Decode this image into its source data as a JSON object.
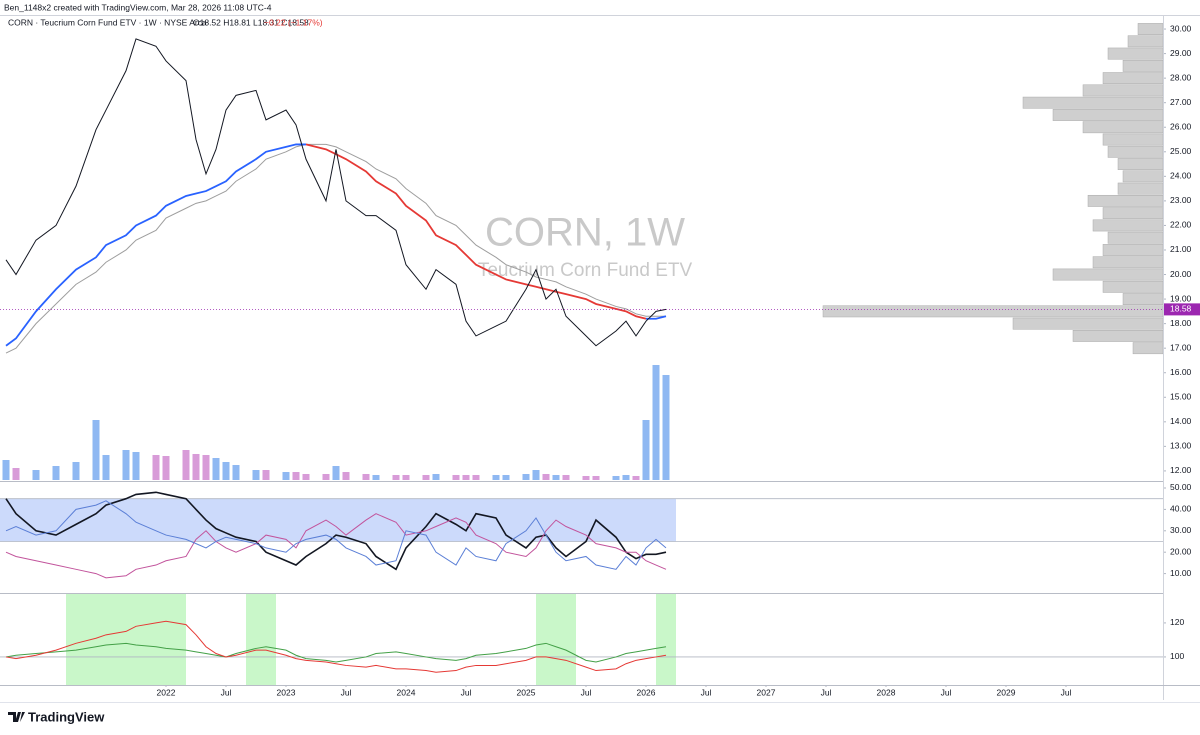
{
  "header": {
    "credit": "Ben_1148x2 created with TradingView.com, Mar 28, 2026 11:08 UTC-4",
    "symbol": "CORN · Teucrium Corn Fund ETV · 1W · NYSE Arca",
    "ohlc": "O18.52 H18.81 L18.31 C18.58",
    "change": "−0.22 (−1.17%)"
  },
  "watermark": {
    "symbol": "CORN, 1W",
    "name": "Teucrium Corn Fund ETV"
  },
  "footer": {
    "brand": "TradingView"
  },
  "chart_data": [
    {
      "type": "line",
      "x": [
        "2020-09",
        "2020-10",
        "2020-12",
        "2021-02",
        "2021-04",
        "2021-06",
        "2021-07",
        "2021-09",
        "2021-10",
        "2021-12",
        "2022-01",
        "2022-03",
        "2022-04",
        "2022-05",
        "2022-06",
        "2022-07",
        "2022-08",
        "2022-10",
        "2022-11",
        "2023-01",
        "2023-02",
        "2023-03",
        "2023-05",
        "2023-06",
        "2023-07",
        "2023-09",
        "2023-10",
        "2023-12",
        "2024-01",
        "2024-03",
        "2024-04",
        "2024-06",
        "2024-07",
        "2024-08",
        "2024-10",
        "2024-11",
        "2025-01",
        "2025-02",
        "2025-03",
        "2025-04",
        "2025-05",
        "2025-07",
        "2025-08",
        "2025-10",
        "2025-11",
        "2025-12",
        "2026-01",
        "2026-02",
        "2026-03"
      ],
      "series": [
        {
          "color": "#131722",
          "values": [
            20.6,
            20.0,
            21.4,
            22.0,
            23.6,
            25.9,
            26.7,
            28.3,
            29.6,
            29.3,
            28.7,
            27.9,
            25.5,
            24.1,
            25.1,
            26.7,
            27.3,
            27.5,
            26.3,
            26.7,
            26.1,
            24.7,
            23.0,
            25.1,
            23.0,
            22.4,
            22.4,
            21.8,
            20.4,
            19.4,
            20.2,
            19.6,
            18.1,
            17.5,
            17.9,
            18.1,
            19.4,
            20.2,
            19.0,
            19.4,
            18.3,
            17.5,
            17.1,
            17.7,
            18.1,
            17.5,
            18.1,
            18.5,
            18.58
          ]
        },
        {
          "colors": {
            "up": "#2962ff",
            "down": "#e53935"
          },
          "values": [
            17.1,
            17.4,
            18.5,
            19.4,
            20.2,
            20.7,
            21.2,
            21.6,
            22.0,
            22.4,
            22.8,
            23.2,
            23.3,
            23.4,
            23.6,
            23.8,
            24.2,
            24.7,
            25.0,
            25.2,
            25.3,
            25.3,
            25.1,
            24.9,
            24.7,
            24.2,
            23.8,
            23.3,
            22.8,
            22.2,
            21.6,
            21.2,
            20.8,
            20.4,
            20.0,
            19.8,
            19.6,
            19.5,
            19.4,
            19.3,
            19.2,
            19.0,
            18.8,
            18.6,
            18.5,
            18.3,
            18.2,
            18.2,
            18.3
          ]
        },
        {
          "color": "#9e9e9e",
          "values": [
            16.8,
            17.0,
            18.0,
            18.8,
            19.6,
            20.1,
            20.5,
            21.0,
            21.4,
            21.8,
            22.3,
            22.7,
            22.9,
            23.0,
            23.2,
            23.4,
            23.8,
            24.3,
            24.7,
            25.0,
            25.2,
            25.3,
            25.3,
            25.2,
            25.0,
            24.6,
            24.3,
            23.9,
            23.5,
            22.9,
            22.4,
            22.0,
            21.6,
            21.2,
            20.7,
            20.4,
            20.1,
            19.9,
            19.8,
            19.7,
            19.5,
            19.2,
            19.0,
            18.7,
            18.6,
            18.4,
            18.3,
            18.3,
            18.3
          ]
        }
      ],
      "volume": {
        "colors": {
          "up": "#8fb8f2",
          "down": "#d89bd8"
        },
        "values": [
          20,
          12,
          10,
          14,
          18,
          60,
          25,
          30,
          28,
          25,
          24,
          30,
          26,
          25,
          22,
          18,
          15,
          10,
          10,
          8,
          8,
          6,
          6,
          14,
          8,
          6,
          5,
          5,
          5,
          5,
          6,
          5,
          5,
          5,
          5,
          5,
          6,
          10,
          6,
          5,
          5,
          4,
          4,
          4,
          5,
          4,
          60,
          115,
          105
        ]
      },
      "volume_profile": {
        "color": "#cfcfcf",
        "prices": [
          17.0,
          17.5,
          18.0,
          18.5,
          19.0,
          19.5,
          20.0,
          20.5,
          21.0,
          21.5,
          22.0,
          22.5,
          23.0,
          23.5,
          24.0,
          24.5,
          25.0,
          25.5,
          26.0,
          26.5,
          27.0,
          27.5,
          28.0,
          28.5,
          29.0,
          29.5,
          30.0
        ],
        "values": [
          30,
          90,
          150,
          340,
          40,
          60,
          110,
          70,
          60,
          55,
          70,
          60,
          75,
          45,
          40,
          45,
          55,
          60,
          80,
          110,
          140,
          80,
          60,
          40,
          55,
          35,
          25
        ]
      },
      "last_price": 18.58,
      "last_price_color": "#9c27b0",
      "ylim": [
        11.63,
        30.45
      ],
      "yticks": [
        {
          "value": 12,
          "label": "12.00"
        },
        {
          "value": 13,
          "label": "13.00"
        },
        {
          "value": 14,
          "label": "14.00"
        },
        {
          "value": 15,
          "label": "15.00"
        },
        {
          "value": 16,
          "label": "16.00"
        },
        {
          "value": 17,
          "label": "17.00"
        },
        {
          "value": 18,
          "label": "18.00"
        },
        {
          "value": 19,
          "label": "19.00"
        },
        {
          "value": 20,
          "label": "20.00"
        },
        {
          "value": 21,
          "label": "21.00"
        },
        {
          "value": 22,
          "label": "22.00"
        },
        {
          "value": 23,
          "label": "23.00"
        },
        {
          "value": 24,
          "label": "24.00"
        },
        {
          "value": 25,
          "label": "25.00"
        },
        {
          "value": 26,
          "label": "26.00"
        },
        {
          "value": 27,
          "label": "27.00"
        },
        {
          "value": 28,
          "label": "28.00"
        },
        {
          "value": 29,
          "label": "29.00"
        },
        {
          "value": 30,
          "label": "30.00"
        }
      ]
    },
    {
      "type": "line",
      "x": [
        "2020-09",
        "2020-10",
        "2020-12",
        "2021-02",
        "2021-04",
        "2021-06",
        "2021-07",
        "2021-09",
        "2021-10",
        "2021-12",
        "2022-01",
        "2022-03",
        "2022-04",
        "2022-05",
        "2022-06",
        "2022-07",
        "2022-08",
        "2022-10",
        "2022-11",
        "2023-01",
        "2023-02",
        "2023-03",
        "2023-05",
        "2023-06",
        "2023-07",
        "2023-09",
        "2023-10",
        "2023-12",
        "2024-01",
        "2024-03",
        "2024-04",
        "2024-06",
        "2024-07",
        "2024-08",
        "2024-10",
        "2024-11",
        "2025-01",
        "2025-02",
        "2025-03",
        "2025-04",
        "2025-05",
        "2025-07",
        "2025-08",
        "2025-10",
        "2025-11",
        "2025-12",
        "2026-01",
        "2026-02",
        "2026-03"
      ],
      "band": [
        25,
        45
      ],
      "band_color": "#c6d6fb",
      "series": [
        {
          "color": "#5b7fd6",
          "values": [
            30,
            32,
            28,
            30,
            40,
            42,
            44,
            38,
            34,
            30,
            28,
            26,
            24,
            22,
            25,
            27,
            26,
            24,
            22,
            20,
            24,
            26,
            28,
            26,
            22,
            18,
            14,
            16,
            30,
            28,
            20,
            14,
            22,
            18,
            16,
            24,
            30,
            36,
            28,
            20,
            16,
            18,
            14,
            12,
            18,
            14,
            22,
            26,
            22
          ]
        },
        {
          "color": "#c2549c",
          "values": [
            20,
            18,
            16,
            14,
            12,
            10,
            8,
            9,
            12,
            14,
            16,
            18,
            26,
            30,
            25,
            22,
            20,
            24,
            28,
            26,
            22,
            30,
            35,
            32,
            28,
            35,
            38,
            34,
            28,
            30,
            32,
            36,
            34,
            28,
            24,
            20,
            18,
            22,
            30,
            35,
            32,
            28,
            24,
            22,
            20,
            20,
            16,
            14,
            12
          ]
        },
        {
          "color": "#131722",
          "width": 1.6,
          "values": [
            45,
            38,
            30,
            28,
            33,
            38,
            42,
            45,
            47,
            48,
            47,
            45,
            40,
            35,
            31,
            29,
            27,
            25,
            20,
            16,
            14,
            18,
            24,
            28,
            27,
            24,
            18,
            12,
            22,
            32,
            38,
            33,
            30,
            38,
            36,
            28,
            22,
            27,
            28,
            22,
            18,
            25,
            35,
            27,
            20,
            17,
            19,
            19,
            20
          ]
        }
      ],
      "ylim": [
        1.4,
        52.8
      ],
      "yticks": [
        {
          "value": 10,
          "label": "10.00"
        },
        {
          "value": 20,
          "label": "20.00"
        },
        {
          "value": 30,
          "label": "30.00"
        },
        {
          "value": 40,
          "label": "40.00"
        },
        {
          "value": 50,
          "label": "50.00"
        }
      ]
    },
    {
      "type": "line",
      "x": [
        "2020-09",
        "2020-10",
        "2020-12",
        "2021-02",
        "2021-04",
        "2021-06",
        "2021-07",
        "2021-09",
        "2021-10",
        "2021-12",
        "2022-01",
        "2022-03",
        "2022-04",
        "2022-05",
        "2022-06",
        "2022-07",
        "2022-08",
        "2022-10",
        "2022-11",
        "2023-01",
        "2023-02",
        "2023-03",
        "2023-05",
        "2023-06",
        "2023-07",
        "2023-09",
        "2023-10",
        "2023-12",
        "2024-01",
        "2024-03",
        "2024-04",
        "2024-06",
        "2024-07",
        "2024-08",
        "2024-10",
        "2024-11",
        "2025-01",
        "2025-02",
        "2025-03",
        "2025-04",
        "2025-05",
        "2025-07",
        "2025-08",
        "2025-10",
        "2025-11",
        "2025-12",
        "2026-01",
        "2026-02",
        "2026-03"
      ],
      "highlights": [
        [
          "2021-03",
          "2022-02"
        ],
        [
          "2022-09",
          "2022-11"
        ],
        [
          "2025-02",
          "2025-05"
        ],
        [
          "2026-02",
          "2026-03"
        ]
      ],
      "highlight_color": "#c9f7c9",
      "levels": [
        100
      ],
      "series": [
        {
          "color": "#e53935",
          "values": [
            100,
            99,
            101,
            104,
            108,
            111,
            113,
            115,
            118,
            120,
            121,
            119,
            113,
            106,
            102,
            100,
            101,
            104,
            104,
            101,
            99,
            98,
            97,
            96,
            95,
            94,
            95,
            93,
            93,
            92,
            91,
            92,
            94,
            95,
            95,
            96,
            98,
            100,
            100,
            99,
            98,
            94,
            92,
            93,
            96,
            98,
            99,
            100,
            101
          ]
        },
        {
          "color": "#43a047",
          "values": [
            100,
            101,
            102,
            103,
            104,
            106,
            107,
            108,
            107,
            106,
            105,
            104,
            103,
            102,
            101,
            100,
            102,
            105,
            106,
            104,
            101,
            99,
            98,
            97,
            98,
            100,
            102,
            103,
            102,
            100,
            99,
            98,
            99,
            101,
            102,
            103,
            105,
            107,
            108,
            106,
            104,
            98,
            97,
            100,
            102,
            103,
            104,
            105,
            106
          ]
        }
      ],
      "ylim": [
        83.5,
        137
      ],
      "yticks": [
        100,
        120
      ],
      "xticks": [
        {
          "value": "2022-01",
          "label": "2022"
        },
        {
          "value": "2022-07",
          "label": "Jul"
        },
        {
          "value": "2023-01",
          "label": "2023"
        },
        {
          "value": "2023-07",
          "label": "Jul"
        },
        {
          "value": "2024-01",
          "label": "2024"
        },
        {
          "value": "2024-07",
          "label": "Jul"
        },
        {
          "value": "2025-01",
          "label": "2025"
        },
        {
          "value": "2025-07",
          "label": "Jul"
        },
        {
          "value": "2026-01",
          "label": "2026"
        },
        {
          "value": "2026-07",
          "label": "Jul"
        },
        {
          "value": "2027-01",
          "label": "2027"
        },
        {
          "value": "2027-07",
          "label": "Jul"
        },
        {
          "value": "2028-01",
          "label": "2028"
        },
        {
          "value": "2028-07",
          "label": "Jul"
        },
        {
          "value": "2029-01",
          "label": "2029"
        },
        {
          "value": "2029-07",
          "label": "Jul"
        }
      ]
    }
  ]
}
